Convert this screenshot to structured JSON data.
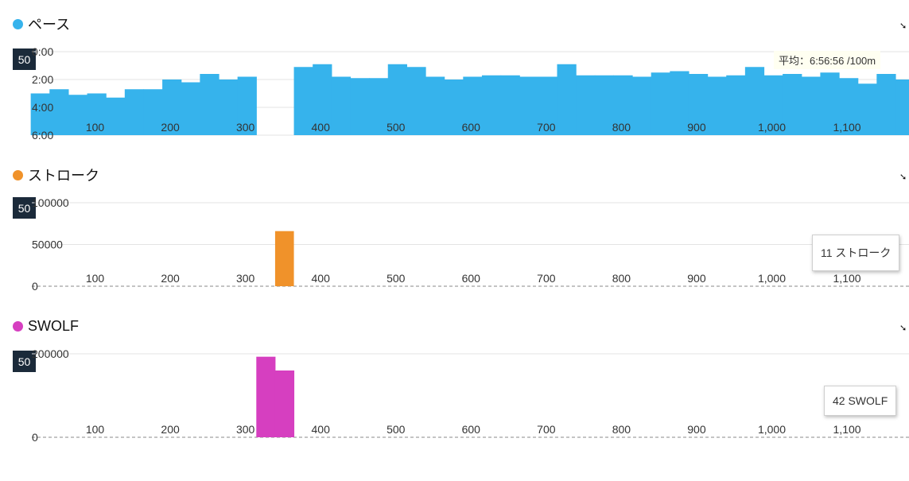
{
  "colors": {
    "pace": "#36b3ec",
    "stroke": "#f0922a",
    "swolf": "#d63fc0",
    "badge": "#1b2a3a",
    "grid": "#e3e3e3"
  },
  "panels": [
    {
      "key": "pace",
      "title": "ペース",
      "badge": "50",
      "icon": "collapse-arrow-icon",
      "avg_label": "平均：6:56:56 /100m"
    },
    {
      "key": "stroke",
      "title": "ストローク",
      "badge": "50",
      "icon": "collapse-arrow-icon",
      "tooltip": "11 ストローク"
    },
    {
      "key": "swolf",
      "title": "SWOLF",
      "badge": "50",
      "icon": "collapse-arrow-icon",
      "tooltip": "42 SWOLF"
    }
  ],
  "chart_data": [
    {
      "type": "bar",
      "series_name": "ペース",
      "x_tick_labels": [
        "100",
        "200",
        "300",
        "400",
        "500",
        "600",
        "700",
        "800",
        "900",
        "1,000",
        "1,100"
      ],
      "y_tick_labels": [
        "0:00",
        "2:00",
        "4:00",
        "6:00"
      ],
      "y_inverted": true,
      "ylim_minutes": [
        0,
        6
      ],
      "xlim": [
        25,
        1200
      ],
      "x_bar_width": 25,
      "x_start": [
        25,
        50,
        75,
        100,
        125,
        150,
        175,
        200,
        225,
        250,
        275,
        300,
        350,
        375,
        400,
        425,
        450,
        475,
        500,
        525,
        550,
        575,
        600,
        625,
        650,
        675,
        700,
        725,
        750,
        775,
        800,
        825,
        850,
        875,
        900,
        925,
        950,
        975,
        1000,
        1025,
        1050,
        1075,
        1100,
        1125,
        1150,
        1175
      ],
      "values_minutes": [
        3.0,
        2.7,
        3.1,
        3.0,
        3.3,
        2.7,
        2.7,
        2.0,
        2.2,
        1.6,
        2.0,
        1.8,
        null,
        1.1,
        0.9,
        1.8,
        1.9,
        1.9,
        0.9,
        1.1,
        1.8,
        2.0,
        1.8,
        1.7,
        1.7,
        1.8,
        1.8,
        0.9,
        1.7,
        1.7,
        1.7,
        1.8,
        1.5,
        1.4,
        1.6,
        1.8,
        1.7,
        1.1,
        1.7,
        1.6,
        1.8,
        1.5,
        1.9,
        2.3,
        1.6,
        2.0
      ],
      "average_label": "平均：6:56:56 /100m"
    },
    {
      "type": "bar",
      "series_name": "ストローク",
      "x_tick_labels": [
        "100",
        "200",
        "300",
        "400",
        "500",
        "600",
        "700",
        "800",
        "900",
        "1,000",
        "1,100"
      ],
      "y_tick_labels": [
        "100000",
        "50000",
        "0"
      ],
      "ylim": [
        0,
        100000
      ],
      "xlim": [
        25,
        1200
      ],
      "bars": [
        {
          "x_start": 350,
          "x_end": 375,
          "value": 66000
        }
      ],
      "tooltip": "11 ストローク"
    },
    {
      "type": "bar",
      "series_name": "SWOLF",
      "x_tick_labels": [
        "100",
        "200",
        "300",
        "400",
        "500",
        "600",
        "700",
        "800",
        "900",
        "1,000",
        "1,100"
      ],
      "y_tick_labels": [
        "200000",
        "0"
      ],
      "ylim": [
        0,
        200000
      ],
      "xlim": [
        25,
        1200
      ],
      "bars": [
        {
          "x_start": 325,
          "x_end": 350,
          "value": 193000
        },
        {
          "x_start": 350,
          "x_end": 375,
          "value": 160000
        }
      ],
      "tooltip": "42 SWOLF"
    }
  ]
}
